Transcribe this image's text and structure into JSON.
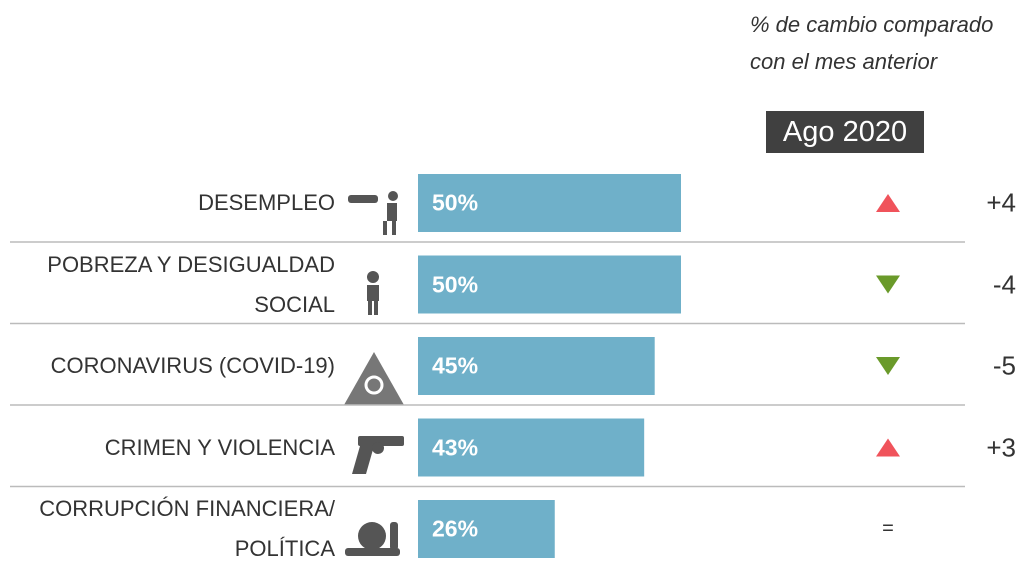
{
  "chart_data": {
    "type": "bar",
    "header": "% de cambio comparado con el mes anterior",
    "period": "Ago 2020",
    "categories": [
      "DESEMPLEO",
      "POBREZA Y DESIGUALDAD\nSOCIAL",
      "CORONAVIRUS (COVID-19)",
      "CRIMEN Y VIOLENCIA",
      "CORRUPCIÓN FINANCIERA/\nPOLÍTICA"
    ],
    "values": [
      50,
      50,
      45,
      43,
      26
    ],
    "value_labels": [
      "50%",
      "50%",
      "45%",
      "43%",
      "26%"
    ],
    "color": "#6fb0c9",
    "changes": [
      4,
      -4,
      -5,
      3,
      0
    ],
    "change_labels": [
      "+4",
      "-4",
      "-5",
      "+3",
      "="
    ],
    "up_color": "#f0535b",
    "down_color": "#6a9a2a"
  }
}
